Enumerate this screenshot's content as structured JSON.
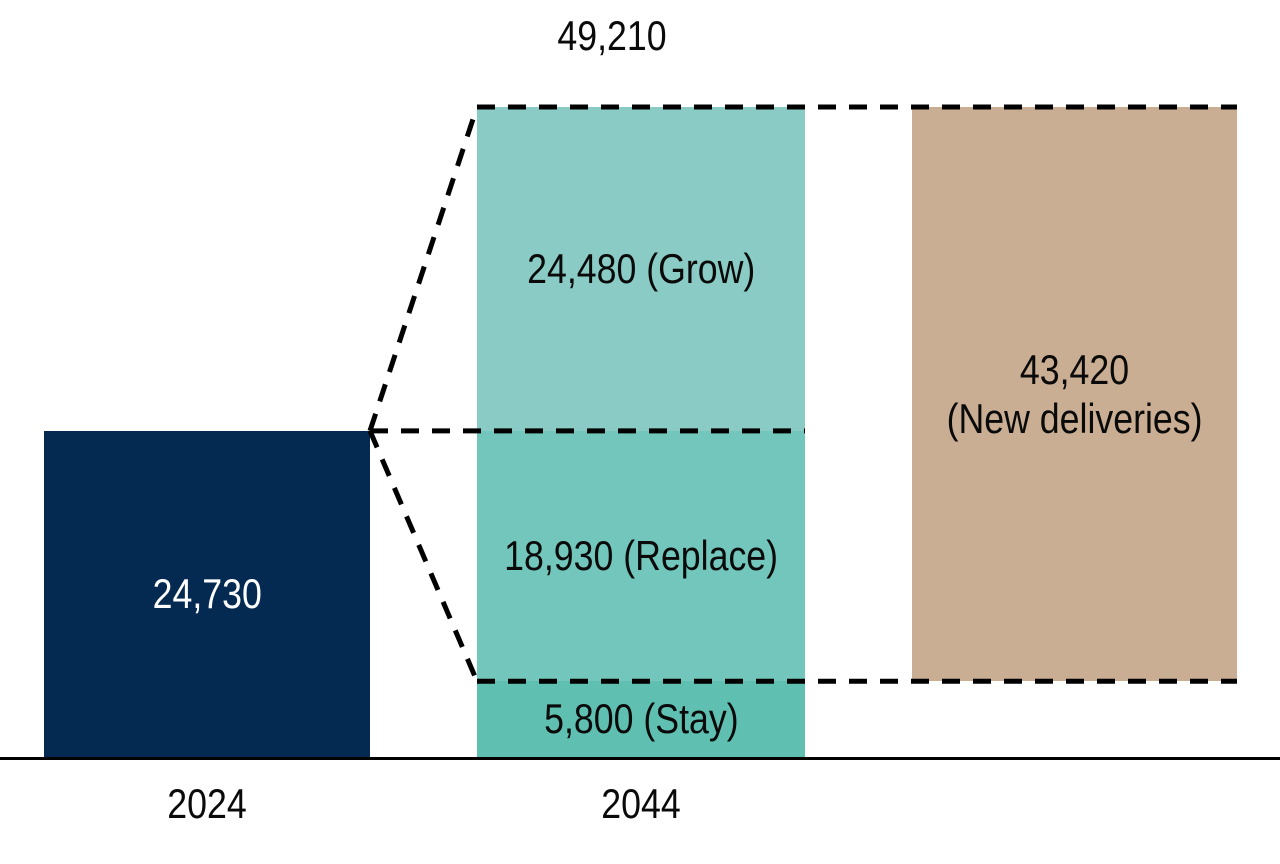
{
  "chart_data": {
    "type": "bar",
    "subtype": "stacked waterfall comparison, horizontal category axis, no gridlines, no legend",
    "title": "",
    "xlabel": "",
    "ylabel": "",
    "ylim": [
      0,
      49210
    ],
    "grid": false,
    "legend": false,
    "axis_labels": [
      "2024",
      "2044"
    ],
    "connector_style": "black dashed lines linking bar levels",
    "bars": [
      {
        "name": "2024-fleet",
        "category": "2024",
        "value": 24730,
        "label": "24,730",
        "color": "#052A52",
        "label_color": "#FFFFFF"
      },
      {
        "name": "2044-fleet",
        "category": "2044",
        "total": 49210,
        "total_label": "49,210",
        "segments": [
          {
            "name": "Stay",
            "value": 5800,
            "label": "5,800 (Stay)",
            "color": "#5FC0B2"
          },
          {
            "name": "Replace",
            "value": 18930,
            "label": "18,930 (Replace)",
            "color": "#72C6BB"
          },
          {
            "name": "Grow",
            "value": 24480,
            "label": "24,480 (Grow)",
            "color": "#8ACCC5"
          }
        ],
        "label_color": "#0A0A0A"
      },
      {
        "name": "new-deliveries",
        "value": 43420,
        "label_line1": "43,420",
        "label_line2": "(New deliveries)",
        "color": "#C9AE93",
        "label_color": "#0A0A0A"
      }
    ],
    "text_color": "#0A0A0A",
    "axis_line_color": "#000000",
    "connector_color": "#000000"
  }
}
